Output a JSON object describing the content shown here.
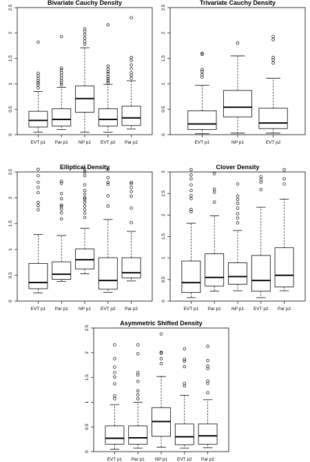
{
  "chart_data": [
    {
      "type": "boxplot",
      "title": "Bivariate Cauchy Density",
      "categories": [
        "EVT p1",
        "Par p1",
        "NP p1",
        "EVT p2",
        "Par p2"
      ],
      "ylim": [
        0,
        2.5
      ],
      "yticks": [
        0,
        0.5,
        1.0,
        1.5,
        2.0,
        2.5
      ],
      "boxes": [
        {
          "min": 0.05,
          "q1": 0.15,
          "median": 0.28,
          "q3": 0.46,
          "max": 0.85,
          "outliers": [
            0.92,
            0.98,
            1.02,
            1.06,
            1.11,
            1.16,
            1.21,
            1.82
          ]
        },
        {
          "min": 0.1,
          "q1": 0.17,
          "median": 0.3,
          "q3": 0.51,
          "max": 0.93,
          "outliers": [
            0.98,
            1.02,
            1.07,
            1.12,
            1.17,
            1.22,
            1.27,
            1.31,
            1.93
          ]
        },
        {
          "min": 0.05,
          "q1": 0.44,
          "median": 0.71,
          "q3": 0.96,
          "max": 1.71,
          "outliers": [
            1.78,
            1.84,
            1.9,
            1.97,
            2.03,
            2.08
          ]
        },
        {
          "min": 0.05,
          "q1": 0.17,
          "median": 0.3,
          "q3": 0.51,
          "max": 0.99,
          "outliers": [
            1.02,
            1.06,
            1.1,
            1.14,
            1.2,
            1.24,
            1.29,
            1.35,
            2.16
          ]
        },
        {
          "min": 0.11,
          "q1": 0.18,
          "median": 0.33,
          "q3": 0.56,
          "max": 1.06,
          "outliers": [
            1.11,
            1.17,
            1.22,
            1.3,
            1.37,
            1.46,
            1.52,
            2.3
          ]
        }
      ]
    },
    {
      "type": "boxplot",
      "title": "Trivariate Cauchy Density",
      "categories": [
        "EVT p1",
        "NP p1",
        "EVT p2"
      ],
      "ylim": [
        0,
        2.5
      ],
      "yticks": [
        0,
        0.5,
        1.0,
        1.5,
        2.0,
        2.5
      ],
      "boxes": [
        {
          "min": 0.02,
          "q1": 0.1,
          "median": 0.21,
          "q3": 0.47,
          "max": 0.97,
          "outliers": [
            1.13,
            1.18,
            1.24,
            1.28,
            1.58,
            1.6
          ]
        },
        {
          "min": 0.03,
          "q1": 0.35,
          "median": 0.54,
          "q3": 0.87,
          "max": 1.55,
          "outliers": [
            1.8
          ]
        },
        {
          "min": 0.03,
          "q1": 0.12,
          "median": 0.23,
          "q3": 0.52,
          "max": 1.11,
          "outliers": [
            1.41,
            1.47,
            1.52,
            1.87,
            1.93
          ]
        }
      ]
    },
    {
      "type": "boxplot",
      "title": "Elliptical Density",
      "categories": [
        "EVT p1",
        "Par p1",
        "NP p1",
        "EVT p2",
        "Par p2"
      ],
      "ylim": [
        0,
        2.5
      ],
      "yticks": [
        0,
        0.5,
        1.0,
        1.5,
        2.0,
        2.5
      ],
      "boxes": [
        {
          "min": 0.16,
          "q1": 0.24,
          "median": 0.36,
          "q3": 0.73,
          "max": 1.29,
          "outliers": [
            1.77,
            1.85,
            1.91,
            2.1,
            2.2,
            2.3,
            2.43,
            2.55
          ]
        },
        {
          "min": 0.38,
          "q1": 0.42,
          "median": 0.52,
          "q3": 0.76,
          "max": 1.27,
          "outliers": [
            1.59,
            1.71,
            1.78,
            1.83,
            1.86,
            1.98,
            2.08,
            2.28,
            2.32
          ]
        },
        {
          "min": 0.53,
          "q1": 0.62,
          "median": 0.8,
          "q3": 1.01,
          "max": 1.41,
          "outliers": [
            1.62,
            1.7,
            1.77,
            1.84,
            1.91,
            1.97,
            2.0,
            2.07,
            2.14,
            2.25,
            2.43,
            2.5,
            2.56
          ]
        },
        {
          "min": 0.17,
          "q1": 0.23,
          "median": 0.4,
          "q3": 0.84,
          "max": 1.58,
          "outliers": [
            1.84,
            2.04,
            2.26,
            2.3,
            2.39,
            2.55
          ]
        },
        {
          "min": 0.39,
          "q1": 0.45,
          "median": 0.55,
          "q3": 0.84,
          "max": 1.35,
          "outliers": [
            1.52,
            1.8,
            2.03,
            2.12,
            2.2,
            2.27,
            2.3
          ]
        }
      ]
    },
    {
      "type": "boxplot",
      "title": "Clover Density",
      "categories": [
        "EVT p1",
        "Par p1",
        "NP p1",
        "EVT p2",
        "Par p2"
      ],
      "ylim": [
        0,
        3.0
      ],
      "yticks": [
        0,
        0.5,
        1.0,
        1.5,
        2.0,
        2.5,
        3.0
      ],
      "boxes": [
        {
          "min": 0.08,
          "q1": 0.2,
          "median": 0.43,
          "q3": 0.93,
          "max": 1.81,
          "outliers": [
            2.08,
            2.13,
            2.38,
            2.45,
            2.57,
            2.7,
            2.84,
            2.93,
            3.05
          ]
        },
        {
          "min": 0.23,
          "q1": 0.35,
          "median": 0.55,
          "q3": 1.1,
          "max": 1.98,
          "outliers": [
            2.3,
            2.53,
            2.6,
            2.96
          ]
        },
        {
          "min": 0.24,
          "q1": 0.39,
          "median": 0.57,
          "q3": 0.89,
          "max": 1.64,
          "outliers": [
            1.82,
            1.93,
            2.03,
            2.16,
            2.27,
            2.36,
            2.44,
            2.72
          ]
        },
        {
          "min": 0.08,
          "q1": 0.23,
          "median": 0.48,
          "q3": 1.06,
          "max": 2.18,
          "outliers": [
            2.59,
            2.76,
            2.82,
            2.89
          ]
        },
        {
          "min": 0.24,
          "q1": 0.33,
          "median": 0.6,
          "q3": 1.24,
          "max": 2.37,
          "outliers": [
            2.72,
            2.84,
            3.05
          ]
        }
      ]
    },
    {
      "type": "boxplot",
      "title": "Asymmetric Shifted Density",
      "categories": [
        "EVT p1",
        "Par p1",
        "NP p1",
        "EVT p2",
        "Par p2"
      ],
      "ylim": [
        0,
        2.5
      ],
      "yticks": [
        0,
        0.5,
        1.0,
        1.5,
        2.0,
        2.5
      ],
      "boxes": [
        {
          "min": 0.05,
          "q1": 0.15,
          "median": 0.27,
          "q3": 0.52,
          "max": 0.95,
          "outliers": [
            1.07,
            1.13,
            1.37,
            1.51,
            1.6,
            1.71,
            1.88,
            2.16
          ]
        },
        {
          "min": 0.07,
          "q1": 0.15,
          "median": 0.28,
          "q3": 0.52,
          "max": 1.0,
          "outliers": [
            1.07,
            1.15,
            1.23,
            1.42,
            1.55,
            1.6,
            1.98,
            2.16
          ]
        },
        {
          "min": 0.09,
          "q1": 0.31,
          "median": 0.61,
          "q3": 0.89,
          "max": 1.52,
          "outliers": [
            1.78,
            1.88,
            1.99,
            2.01,
            2.38
          ]
        },
        {
          "min": 0.07,
          "q1": 0.14,
          "median": 0.3,
          "q3": 0.56,
          "max": 1.14,
          "outliers": [
            1.33,
            1.38,
            1.72,
            1.83,
            1.87,
            2.08
          ]
        },
        {
          "min": 0.08,
          "q1": 0.15,
          "median": 0.32,
          "q3": 0.56,
          "max": 1.05,
          "outliers": [
            1.19,
            1.38,
            1.43,
            1.68,
            1.73,
            1.84,
            2.13
          ]
        }
      ]
    }
  ]
}
